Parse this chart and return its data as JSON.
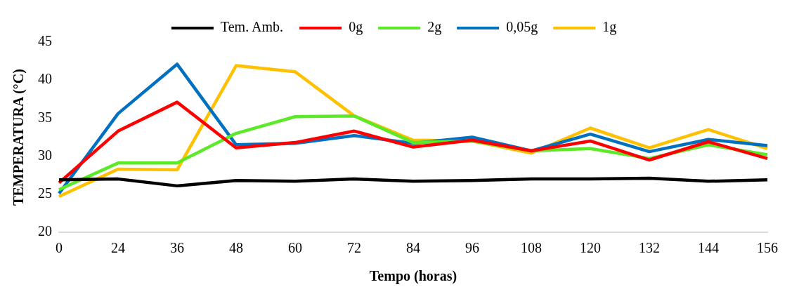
{
  "chart_data": {
    "type": "line",
    "xlabel": "Tempo (horas)",
    "ylabel": "TEMPERATURA (°C)",
    "categories": [
      "0",
      "24",
      "36",
      "48",
      "60",
      "72",
      "84",
      "96",
      "108",
      "120",
      "132",
      "144",
      "156"
    ],
    "ylim": [
      20,
      45
    ],
    "yticks": [
      20,
      25,
      30,
      35,
      40,
      45
    ],
    "grid": false,
    "legend": "top",
    "line_style": "solid",
    "series": [
      {
        "name": "Tem. Amb.",
        "color": "#000000",
        "values": [
          26.9,
          27.0,
          26.1,
          26.8,
          26.7,
          27.0,
          26.7,
          26.8,
          27.0,
          27.0,
          27.1,
          26.7,
          26.9
        ]
      },
      {
        "name": "0g",
        "color": "#ff0000",
        "values": [
          26.5,
          33.3,
          37.1,
          31.1,
          31.8,
          33.3,
          31.2,
          32.1,
          30.7,
          32.0,
          29.5,
          31.9,
          29.7
        ]
      },
      {
        "name": "2g",
        "color": "#5be928",
        "values": [
          25.6,
          29.1,
          29.1,
          33.0,
          35.2,
          35.3,
          31.8,
          32.0,
          30.7,
          31.0,
          29.7,
          31.5,
          30.2
        ]
      },
      {
        "name": "0,05g",
        "color": "#0070c0",
        "values": [
          25.1,
          35.6,
          42.1,
          31.5,
          31.7,
          32.7,
          31.7,
          32.5,
          30.7,
          32.9,
          30.6,
          32.2,
          31.4
        ]
      },
      {
        "name": "1g",
        "color": "#ffc000",
        "values": [
          24.7,
          28.3,
          28.2,
          41.9,
          41.1,
          35.3,
          32.1,
          32.0,
          30.4,
          33.7,
          31.1,
          33.5,
          31.0
        ]
      }
    ]
  }
}
